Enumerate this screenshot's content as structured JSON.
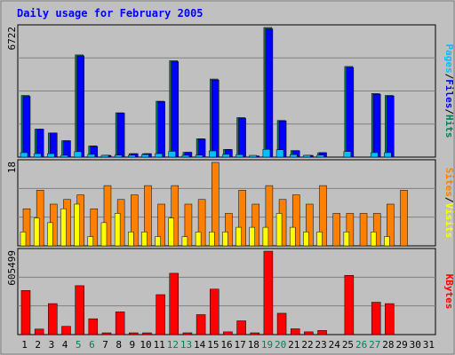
{
  "title": "Daily usage for February 2005",
  "colors": {
    "background": "#c0c0c0",
    "plot_bg": "#c0c0c0",
    "grid": "#808080",
    "title": "#0000ff",
    "hits": "#00805c",
    "files": "#0000ff",
    "pages": "#00c0ff",
    "visits": "#ffff00",
    "sites": "#ff8000",
    "kbytes": "#ff0000",
    "weekend_label": "#00805c",
    "weekday_label": "#000000"
  },
  "chart_data": [
    {
      "type": "bar",
      "title": "Daily usage for February 2005",
      "panel": "hits-files-pages",
      "ymax_label": "6722",
      "ylim": [
        0,
        6722
      ],
      "legend": {
        "pages": "Pages",
        "files": "Files",
        "hits": "Hits",
        "sep": "/"
      },
      "categories": [
        "1",
        "2",
        "3",
        "4",
        "5",
        "6",
        "7",
        "8",
        "9",
        "10",
        "11",
        "12",
        "13",
        "14",
        "15",
        "16",
        "17",
        "18",
        "19",
        "20",
        "21",
        "22",
        "23",
        "24",
        "25",
        "26",
        "27",
        "28",
        "29",
        "30",
        "31"
      ],
      "weekend_days": [
        "5",
        "6",
        "12",
        "13",
        "19",
        "20",
        "26",
        "27"
      ],
      "series": [
        {
          "name": "Hits",
          "values": [
            3200,
            1450,
            1250,
            850,
            5300,
            580,
            90,
            2300,
            180,
            180,
            2900,
            5000,
            250,
            950,
            4050,
            400,
            2050,
            60,
            6722,
            1900,
            340,
            90,
            230,
            0,
            4700,
            0,
            3300,
            3200,
            0,
            0,
            0
          ]
        },
        {
          "name": "Files",
          "values": [
            3150,
            1450,
            1250,
            850,
            5250,
            560,
            90,
            2280,
            180,
            180,
            2880,
            4950,
            250,
            940,
            4000,
            390,
            2020,
            60,
            6650,
            1880,
            330,
            90,
            230,
            0,
            4650,
            0,
            3260,
            3170,
            0,
            0,
            0
          ]
        },
        {
          "name": "Pages",
          "values": [
            230,
            180,
            180,
            90,
            280,
            140,
            40,
            100,
            60,
            130,
            180,
            300,
            90,
            100,
            320,
            140,
            130,
            30,
            400,
            380,
            130,
            50,
            100,
            0,
            290,
            0,
            230,
            230,
            0,
            0,
            0
          ]
        }
      ]
    },
    {
      "type": "bar",
      "panel": "visits-sites",
      "ymax_label": "18",
      "ylim": [
        0,
        18
      ],
      "legend": {
        "sites": "Sites",
        "visits": "Visits",
        "sep": "/"
      },
      "categories": [
        "1",
        "2",
        "3",
        "4",
        "5",
        "6",
        "7",
        "8",
        "9",
        "10",
        "11",
        "12",
        "13",
        "14",
        "15",
        "16",
        "17",
        "18",
        "19",
        "20",
        "21",
        "22",
        "23",
        "24",
        "25",
        "26",
        "27",
        "28",
        "29",
        "30",
        "31"
      ],
      "series": [
        {
          "name": "Visits",
          "values": [
            3,
            6,
            5,
            8,
            9,
            2,
            5,
            7,
            3,
            3,
            2,
            6,
            2,
            3,
            3,
            3,
            4,
            4,
            4,
            7,
            4,
            3,
            3,
            0,
            3,
            0,
            3,
            2,
            0,
            0,
            0
          ]
        },
        {
          "name": "Sites",
          "values": [
            8,
            12,
            9,
            10,
            11,
            8,
            13,
            10,
            11,
            13,
            9,
            13,
            9,
            10,
            18,
            7,
            12,
            9,
            13,
            10,
            11,
            9,
            13,
            7,
            7,
            7,
            7,
            9,
            12,
            0,
            0
          ]
        }
      ]
    },
    {
      "type": "bar",
      "panel": "kbytes",
      "ymax_label": "605499",
      "ylim": [
        0,
        605499
      ],
      "legend": {
        "kbytes": "KBytes"
      },
      "categories": [
        "1",
        "2",
        "3",
        "4",
        "5",
        "6",
        "7",
        "8",
        "9",
        "10",
        "11",
        "12",
        "13",
        "14",
        "15",
        "16",
        "17",
        "18",
        "19",
        "20",
        "21",
        "22",
        "23",
        "24",
        "25",
        "26",
        "27",
        "28",
        "29",
        "30",
        "31"
      ],
      "series": [
        {
          "name": "KBytes",
          "values": [
            320000,
            40000,
            225000,
            60000,
            355000,
            115000,
            10000,
            165000,
            12000,
            9000,
            290000,
            445000,
            13000,
            145000,
            330000,
            20000,
            100000,
            3000,
            605499,
            155000,
            42000,
            20000,
            30000,
            0,
            430000,
            0,
            235000,
            225000,
            0,
            0,
            0
          ]
        }
      ]
    }
  ]
}
